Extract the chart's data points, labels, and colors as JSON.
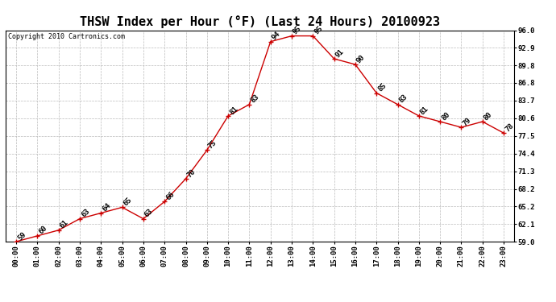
{
  "title": "THSW Index per Hour (°F) (Last 24 Hours) 20100923",
  "copyright": "Copyright 2010 Cartronics.com",
  "hours": [
    "00:00",
    "01:00",
    "02:00",
    "03:00",
    "04:00",
    "05:00",
    "06:00",
    "07:00",
    "08:00",
    "09:00",
    "10:00",
    "11:00",
    "12:00",
    "13:00",
    "14:00",
    "15:00",
    "16:00",
    "17:00",
    "18:00",
    "19:00",
    "20:00",
    "21:00",
    "22:00",
    "23:00"
  ],
  "values": [
    59,
    60,
    61,
    63,
    64,
    65,
    63,
    66,
    70,
    75,
    81,
    83,
    94,
    95,
    95,
    91,
    90,
    85,
    83,
    81,
    80,
    79,
    80,
    78
  ],
  "ylim": [
    59.0,
    96.0
  ],
  "yticks": [
    59.0,
    62.1,
    65.2,
    68.2,
    71.3,
    74.4,
    77.5,
    80.6,
    83.7,
    86.8,
    89.8,
    92.9,
    96.0
  ],
  "line_color": "#cc0000",
  "marker_color": "#cc0000",
  "bg_color": "#ffffff",
  "grid_color": "#bbbbbb",
  "title_fontsize": 11,
  "label_fontsize": 6.5,
  "annot_fontsize": 6.5,
  "copyright_fontsize": 6
}
